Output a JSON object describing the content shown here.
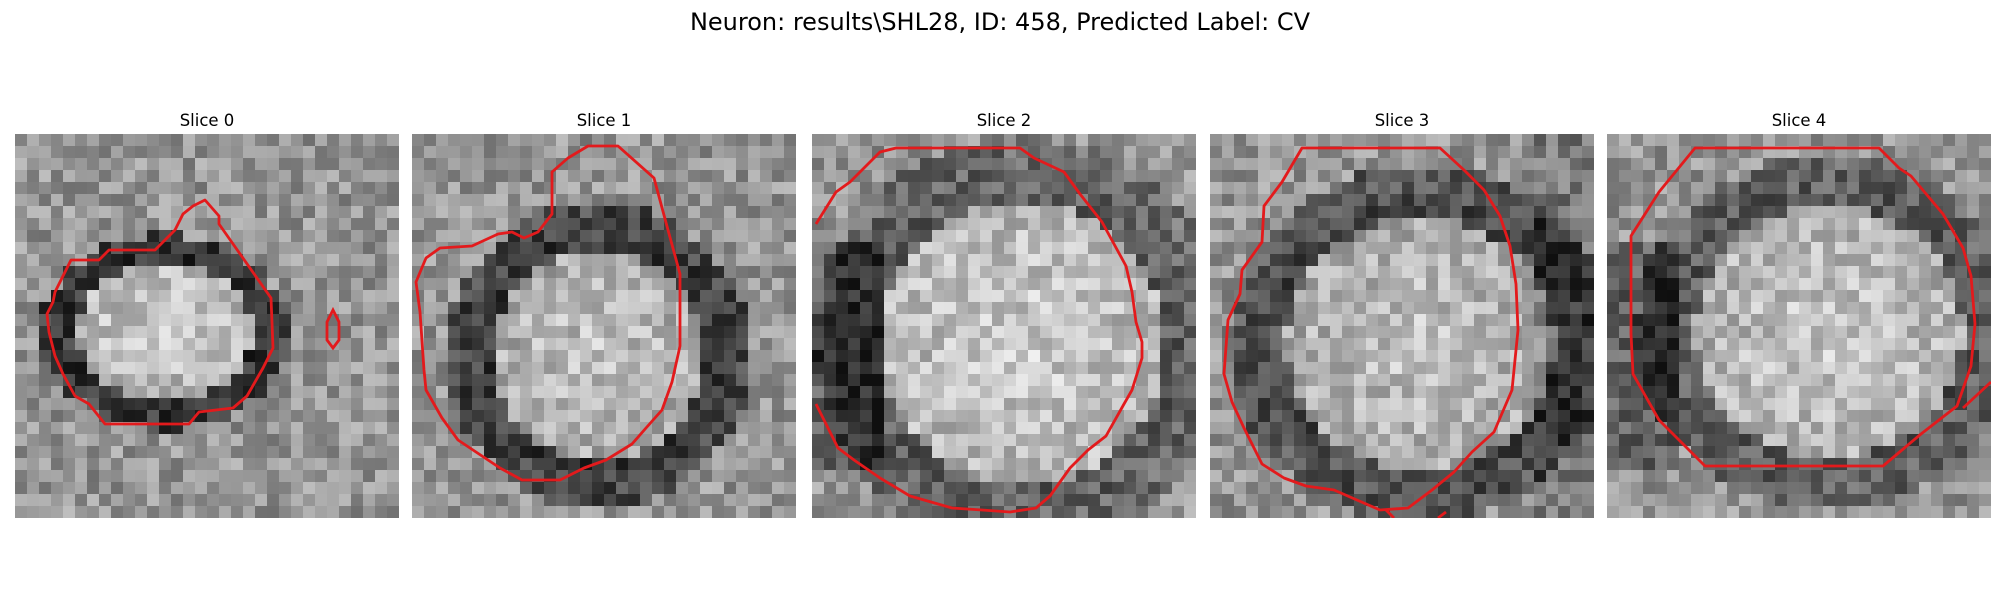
{
  "figure": {
    "title": "Neuron: results\\SHL28, ID: 458, Predicted Label: CV"
  },
  "panels": [
    {
      "title": "Slice 0"
    },
    {
      "title": "Slice 1"
    },
    {
      "title": "Slice 2"
    },
    {
      "title": "Slice 3"
    },
    {
      "title": "Slice 4"
    }
  ],
  "colors": {
    "contour": "#e31a1c",
    "background": "#ffffff"
  }
}
